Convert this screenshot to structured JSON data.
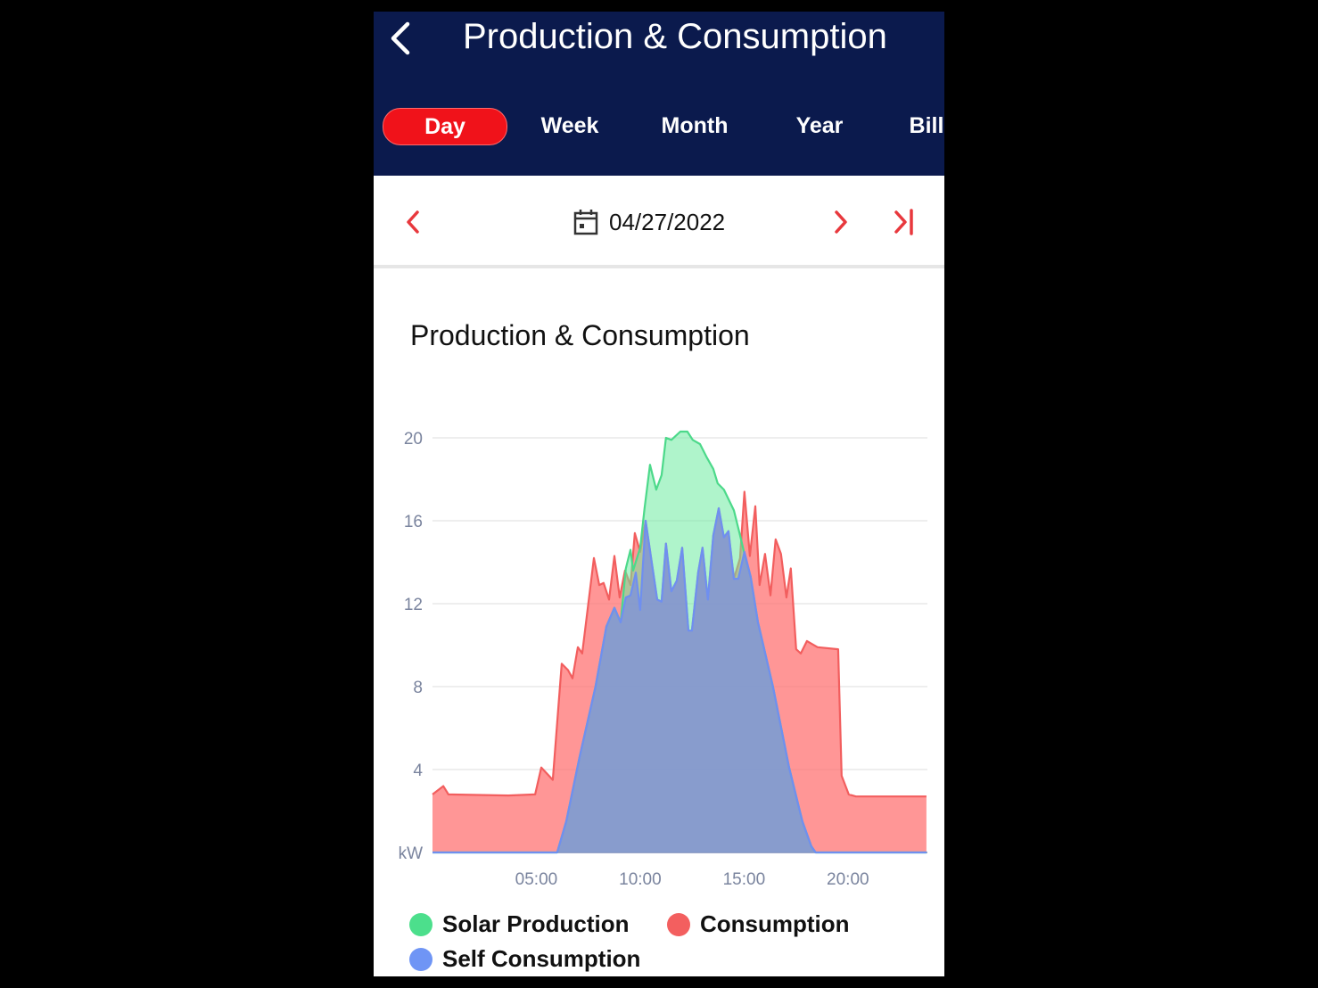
{
  "header": {
    "title": "Production & Consumption",
    "back_icon": "chevron-left-icon"
  },
  "tabs": [
    {
      "label": "Day",
      "active": true
    },
    {
      "label": "Week",
      "active": false
    },
    {
      "label": "Month",
      "active": false
    },
    {
      "label": "Year",
      "active": false
    },
    {
      "label": "Bill",
      "active": false
    }
  ],
  "date_nav": {
    "date": "04/27/2022",
    "icons": [
      "chevron-left-icon",
      "calendar-icon",
      "chevron-right-icon",
      "skip-to-end-icon"
    ]
  },
  "colors": {
    "header": "#0b1a4d",
    "accent": "#f0121a",
    "solar": "#4cd98a",
    "consumption": "#f06464",
    "self": "#6f8ff0"
  },
  "chart_data": {
    "type": "area",
    "title": "Production & Consumption",
    "ylabel": "kW",
    "ylim": [
      0,
      20
    ],
    "yticks": [
      "kW",
      "4",
      "8",
      "12",
      "16",
      "20"
    ],
    "xlim": [
      0,
      24
    ],
    "xticks": [
      {
        "h": 5,
        "label": "05:00"
      },
      {
        "h": 10,
        "label": "10:00"
      },
      {
        "h": 15,
        "label": "15:00"
      },
      {
        "h": 20,
        "label": "20:00"
      }
    ],
    "grid": true,
    "legend_position": "bottom",
    "series": [
      {
        "name": "Consumption",
        "key": "consumption",
        "points": [
          [
            0,
            2.8
          ],
          [
            0.52,
            3.2
          ],
          [
            0.77,
            2.8
          ],
          [
            3.65,
            2.75
          ],
          [
            4.94,
            2.8
          ],
          [
            5.24,
            4.1
          ],
          [
            5.79,
            3.5
          ],
          [
            6.22,
            9.1
          ],
          [
            6.52,
            8.8
          ],
          [
            6.74,
            8.4
          ],
          [
            7.0,
            9.9
          ],
          [
            7.21,
            9.6
          ],
          [
            7.77,
            14.2
          ],
          [
            8.03,
            12.9
          ],
          [
            8.24,
            13.0
          ],
          [
            8.5,
            12.2
          ],
          [
            8.76,
            14.3
          ],
          [
            9.01,
            12.3
          ],
          [
            9.27,
            13.6
          ],
          [
            9.53,
            12.9
          ],
          [
            9.74,
            15.4
          ],
          [
            10.0,
            14.5
          ],
          [
            10.26,
            16.0
          ],
          [
            10.82,
            12.2
          ],
          [
            11.03,
            12.1
          ],
          [
            11.24,
            14.9
          ],
          [
            11.5,
            12.6
          ],
          [
            11.76,
            13.1
          ],
          [
            12.02,
            14.7
          ],
          [
            12.32,
            10.7
          ],
          [
            12.49,
            10.7
          ],
          [
            12.79,
            13.5
          ],
          [
            13.0,
            14.7
          ],
          [
            13.26,
            12.2
          ],
          [
            13.52,
            15.3
          ],
          [
            13.78,
            16.6
          ],
          [
            14.03,
            15.2
          ],
          [
            14.25,
            15.5
          ],
          [
            14.51,
            13.2
          ],
          [
            14.81,
            14.2
          ],
          [
            15.02,
            17.4
          ],
          [
            15.28,
            14.3
          ],
          [
            15.54,
            16.7
          ],
          [
            15.75,
            12.9
          ],
          [
            16.01,
            14.4
          ],
          [
            16.27,
            12.4
          ],
          [
            16.52,
            15.1
          ],
          [
            16.78,
            14.4
          ],
          [
            17.04,
            12.3
          ],
          [
            17.25,
            13.7
          ],
          [
            17.51,
            9.8
          ],
          [
            17.73,
            9.6
          ],
          [
            18.03,
            10.2
          ],
          [
            18.54,
            9.9
          ],
          [
            19.53,
            9.8
          ],
          [
            19.7,
            3.7
          ],
          [
            20.04,
            2.8
          ],
          [
            20.39,
            2.7
          ],
          [
            22.1,
            2.7
          ],
          [
            23.78,
            2.7
          ]
        ]
      },
      {
        "name": "Solar Production",
        "key": "solar",
        "points": [
          [
            0,
            0
          ],
          [
            6.0,
            0
          ],
          [
            6.44,
            1.5
          ],
          [
            7.08,
            4.6
          ],
          [
            7.85,
            8.0
          ],
          [
            8.37,
            10.9
          ],
          [
            8.76,
            11.8
          ],
          [
            9.06,
            11.1
          ],
          [
            9.31,
            13.7
          ],
          [
            9.53,
            14.6
          ],
          [
            9.66,
            13.6
          ],
          [
            10.0,
            14.7
          ],
          [
            10.21,
            16.6
          ],
          [
            10.47,
            18.7
          ],
          [
            10.77,
            17.5
          ],
          [
            11.03,
            18.2
          ],
          [
            11.24,
            20.0
          ],
          [
            11.5,
            19.9
          ],
          [
            11.93,
            20.3
          ],
          [
            12.27,
            20.3
          ],
          [
            12.53,
            19.9
          ],
          [
            12.88,
            19.7
          ],
          [
            13.18,
            19.1
          ],
          [
            13.52,
            18.5
          ],
          [
            13.73,
            17.8
          ],
          [
            14.03,
            17.5
          ],
          [
            14.51,
            16.5
          ],
          [
            14.81,
            15.3
          ],
          [
            15.02,
            14.4
          ],
          [
            15.32,
            13.3
          ],
          [
            15.67,
            11.1
          ],
          [
            16.39,
            8.0
          ],
          [
            17.17,
            4.1
          ],
          [
            17.81,
            1.5
          ],
          [
            18.24,
            0.3
          ],
          [
            18.45,
            0
          ],
          [
            23.78,
            0
          ]
        ]
      },
      {
        "name": "Self Consumption",
        "key": "self",
        "points": [
          [
            0,
            0
          ],
          [
            6.0,
            0
          ],
          [
            6.44,
            1.5
          ],
          [
            7.08,
            4.6
          ],
          [
            7.85,
            8.0
          ],
          [
            8.37,
            10.9
          ],
          [
            8.76,
            11.8
          ],
          [
            9.06,
            11.1
          ],
          [
            9.31,
            12.3
          ],
          [
            9.53,
            12.4
          ],
          [
            9.79,
            13.5
          ],
          [
            10.0,
            11.7
          ],
          [
            10.26,
            16.0
          ],
          [
            10.82,
            12.2
          ],
          [
            11.03,
            12.1
          ],
          [
            11.24,
            14.9
          ],
          [
            11.5,
            12.6
          ],
          [
            11.76,
            13.1
          ],
          [
            12.02,
            14.7
          ],
          [
            12.32,
            10.7
          ],
          [
            12.49,
            10.7
          ],
          [
            12.79,
            13.5
          ],
          [
            13.0,
            14.7
          ],
          [
            13.26,
            12.2
          ],
          [
            13.52,
            15.3
          ],
          [
            13.78,
            16.6
          ],
          [
            14.03,
            15.2
          ],
          [
            14.25,
            15.5
          ],
          [
            14.51,
            13.2
          ],
          [
            14.72,
            13.2
          ],
          [
            15.02,
            14.5
          ],
          [
            15.32,
            13.3
          ],
          [
            15.67,
            11.1
          ],
          [
            16.39,
            8.0
          ],
          [
            17.17,
            4.1
          ],
          [
            17.81,
            1.5
          ],
          [
            18.24,
            0.3
          ],
          [
            18.45,
            0
          ],
          [
            23.78,
            0
          ]
        ]
      }
    ]
  },
  "legend": [
    {
      "label": "Solar Production",
      "key": "solar"
    },
    {
      "label": "Consumption",
      "key": "consumption"
    },
    {
      "label": "Self Consumption",
      "key": "self"
    }
  ]
}
